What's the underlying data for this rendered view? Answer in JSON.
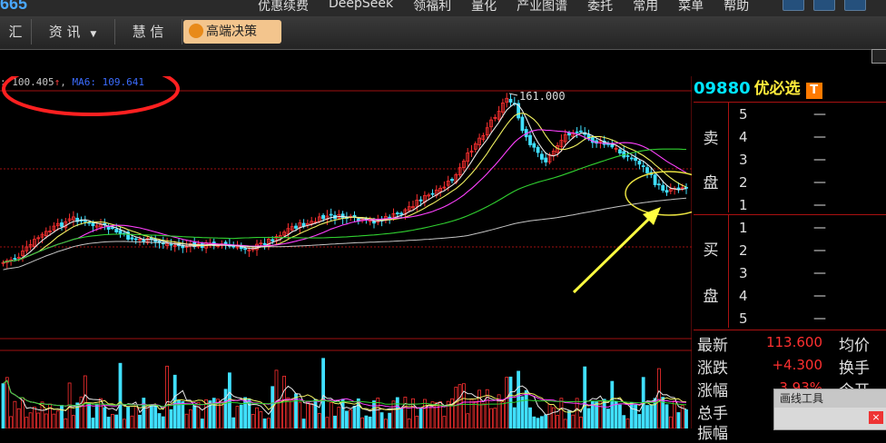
{
  "app": {
    "logo_text": "665"
  },
  "menubar": {
    "items": [
      "优惠续费",
      "DeepSeek",
      "领福利",
      "量化",
      "产业图谱",
      "委托",
      "常用",
      "菜单",
      "帮助"
    ]
  },
  "navbar": {
    "items": [
      "汇",
      "资 讯",
      "慧 信"
    ],
    "highlight": "高端决策"
  },
  "legend": {
    "ma_value": "100.405",
    "ma6_label": "MA6: 109.641"
  },
  "chart": {
    "peak_label": "161.000"
  },
  "stock": {
    "code": "09880",
    "name": "优必选",
    "badge": "T"
  },
  "orderbook": {
    "sell_label_1": "卖",
    "sell_label_2": "盘",
    "buy_label_1": "买",
    "buy_label_2": "盘",
    "sell_levels": [
      "5",
      "4",
      "3",
      "2",
      "1"
    ],
    "buy_levels": [
      "1",
      "2",
      "3",
      "4",
      "5"
    ],
    "empty": "—"
  },
  "quote": {
    "latest_label": "最新",
    "latest_value": "113.600",
    "avg_label": "均价",
    "change_label": "涨跌",
    "change_value": "+4.300",
    "turnover_label": "换手",
    "pct_label": "涨幅",
    "pct_value": "3.93%",
    "open_label": "今开",
    "volume_label": "总手",
    "amplitude_label": "振幅"
  },
  "drawtool": {
    "title": "画线工具",
    "close": "×"
  },
  "colors": {
    "up": "#ff3030",
    "down": "#40e0ff",
    "grid": "#a11111",
    "ma_white": "#e8e8e8",
    "ma_yellow": "#f0f060",
    "ma_magenta": "#ff40ff",
    "ma_green": "#30d030",
    "annotation_arrow": "#ffff40",
    "annotation_circle": "#ff2020"
  }
}
